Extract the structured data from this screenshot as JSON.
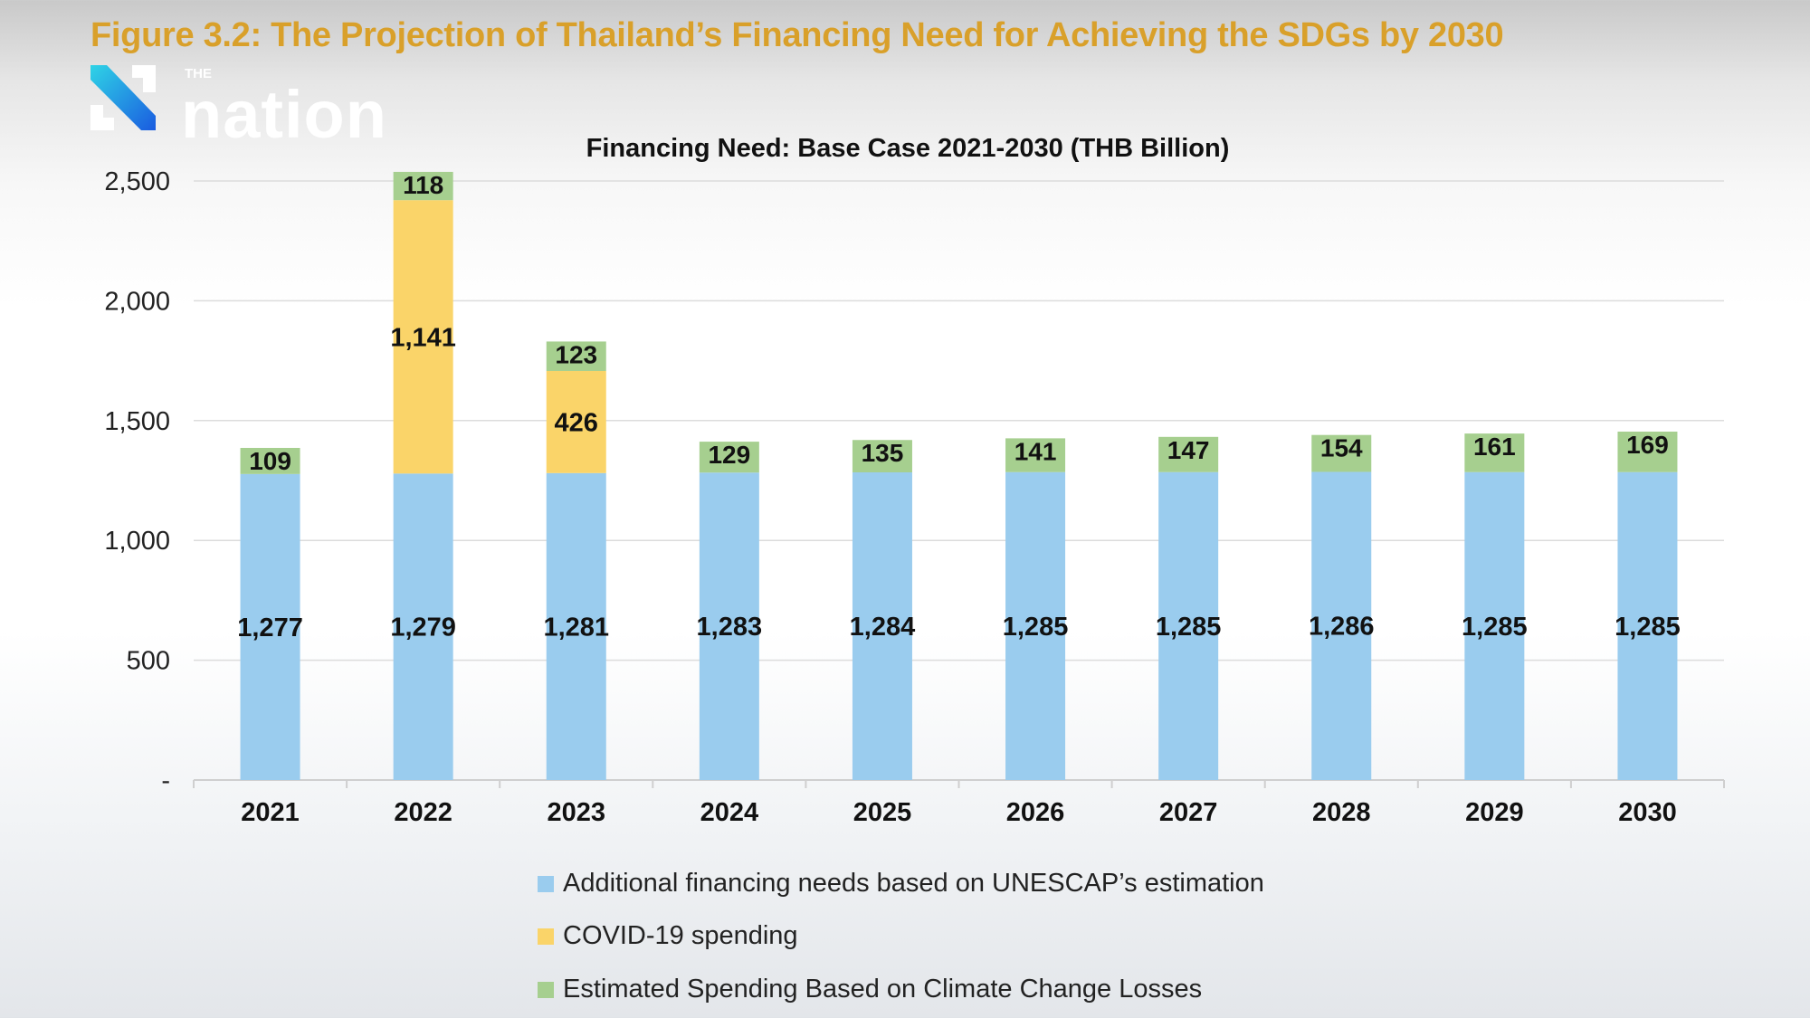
{
  "header": {
    "figure_title": "Figure 3.2: The Projection of Thailand’s Financing Need for Achieving the SDGs by 2030",
    "logo_text": "THE nation"
  },
  "chart_data": {
    "type": "bar",
    "stacked": true,
    "title": "Financing Need: Base Case 2021-2030 (THB Billion)",
    "xlabel": "",
    "ylabel": "",
    "ylim": [
      0,
      2500
    ],
    "yticks": [
      0,
      500,
      1000,
      1500,
      2000,
      2500
    ],
    "ytick_labels": [
      "-",
      "500",
      "1,000",
      "1,500",
      "2,000",
      "2,500"
    ],
    "grid": true,
    "legend_placement": "bottom",
    "categories": [
      "2021",
      "2022",
      "2023",
      "2024",
      "2025",
      "2026",
      "2027",
      "2028",
      "2029",
      "2030"
    ],
    "series": [
      {
        "name": "Additional financing needs based on UNESCAP’s estimation",
        "color": "#9accee",
        "values": [
          1277,
          1279,
          1281,
          1283,
          1284,
          1285,
          1285,
          1286,
          1285,
          1285
        ],
        "labels": [
          "1,277",
          "1,279",
          "1,281",
          "1,283",
          "1,284",
          "1,285",
          "1,285",
          "1,286",
          "1,285",
          "1,285"
        ]
      },
      {
        "name": "COVID-19 spending",
        "color": "#fad469",
        "values": [
          0,
          1141,
          426,
          0,
          0,
          0,
          0,
          0,
          0,
          0
        ],
        "labels": [
          "",
          "1,141",
          "426",
          "",
          "",
          "",
          "",
          "",
          "",
          ""
        ]
      },
      {
        "name": "Estimated Spending Based on Climate Change Losses",
        "color": "#a6cf8f",
        "values": [
          109,
          118,
          123,
          129,
          135,
          141,
          147,
          154,
          161,
          169
        ],
        "labels": [
          "109",
          "118",
          "123",
          "129",
          "135",
          "141",
          "147",
          "154",
          "161",
          "169"
        ]
      }
    ]
  }
}
